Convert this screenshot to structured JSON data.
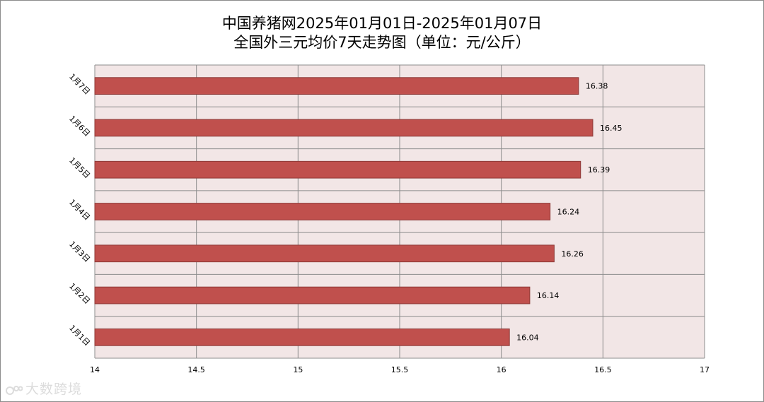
{
  "chart_data": {
    "type": "bar",
    "orientation": "horizontal",
    "title_line1": "中国养猪网2025年01月01日-2025年01月07日",
    "title_line2": "全国外三元均价7天走势图（单位：元/公斤）",
    "categories": [
      "1月1日",
      "1月2日",
      "1月3日",
      "1月4日",
      "1月5日",
      "1月6日",
      "1月7日"
    ],
    "values": [
      16.04,
      16.14,
      16.26,
      16.24,
      16.39,
      16.45,
      16.38
    ],
    "value_labels": [
      "16.04",
      "16.14",
      "16.26",
      "16.24",
      "16.39",
      "16.45",
      "16.38"
    ],
    "xlim": [
      14,
      17
    ],
    "x_ticks": [
      "14",
      "14.5",
      "15",
      "15.5",
      "16",
      "16.5",
      "17"
    ],
    "x_tick_values": [
      14,
      14.5,
      15,
      15.5,
      16,
      16.5,
      17
    ],
    "grid": true,
    "legend": "none",
    "colors": {
      "bar_fill": "#c0504d",
      "bar_stroke": "#8c3836",
      "plot_background": "#f2e6e6",
      "grid": "#8c8c8c"
    }
  },
  "watermark": {
    "text": "大数跨境"
  }
}
